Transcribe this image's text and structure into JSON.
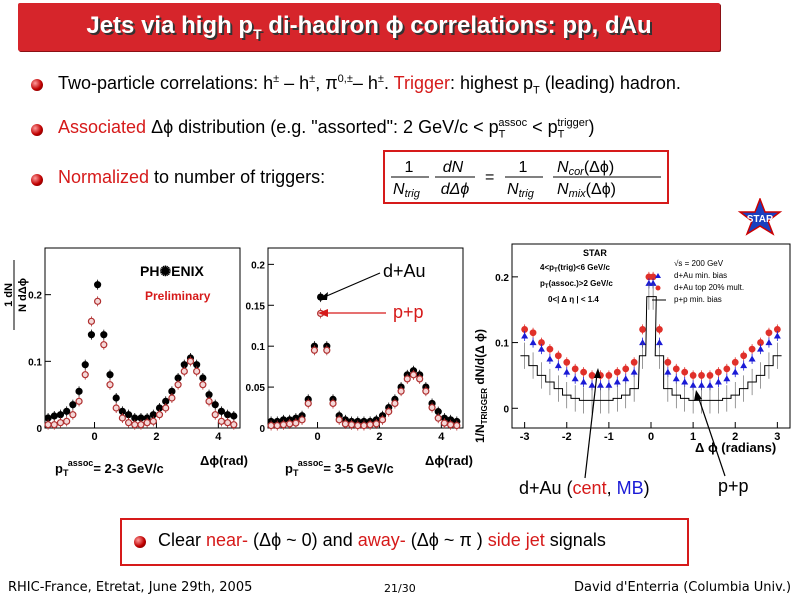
{
  "slide": {
    "title_pre": "Jets via high p",
    "title_sub": "T",
    "title_post": " di-hadron ϕ correlations: pp, dAu",
    "bullet1": {
      "text_a": "Two-particle correlations: h",
      "pm": "±",
      "text_b": " – h",
      "text_c": ", π",
      "zero_pm": "0,±",
      "text_d": "– h",
      "text_e": ".  ",
      "trigger_word": "Trigger",
      "text_f": ": highest p",
      "sub_T": "T",
      "text_g": " (leading) hadron."
    },
    "bullet2": {
      "assoc_word": "Associated",
      "text_a": " Δϕ distribution (e.g. \"assorted\": 2 GeV/c < p",
      "sub_T": "T",
      "sup_assoc": "assoc",
      "text_b": " < p",
      "sup_trigger": "trigger",
      "text_c": ")"
    },
    "bullet3": {
      "norm_word": "Normalized",
      "text_a": " to number of triggers:"
    },
    "equation": {
      "one": "1",
      "n_trig": "N",
      "trig_sub": "trig",
      "dN": "dN",
      "d_dphi": "dΔϕ",
      "equals": "=",
      "n_cor": "N",
      "cor_sub": "cor",
      "cor_arg": "(Δϕ)",
      "n_mix": "N",
      "mix_sub": "mix",
      "mix_arg": "(Δϕ)"
    },
    "star_logo": "STAR",
    "phenix": {
      "logo": "PH✺ENIX",
      "preliminary": "Preliminary",
      "ylabel_top": "1   dN",
      "ylabel_bottom": "N    dΔϕ",
      "ylabel_trig": "trig",
      "panel1_caption_pre": "p",
      "panel1_caption_sub": "T",
      "panel1_caption_sup": "assoc",
      "panel1_caption_post": "= 2-3 GeV/c",
      "panel2_caption_post": "= 3-5 GeV/c",
      "xaxis_label": "Δϕ(rad)",
      "label_dau": "d+Au",
      "label_pp": "p+p"
    },
    "star_plot": {
      "title": "STAR",
      "ann1": "4<p",
      "ann1_sub": "T",
      "ann1_post": "(trig)<6 GeV/c",
      "ann2": "p",
      "ann2_sub": "T",
      "ann2_post": "(assoc.)>2 GeV/c",
      "ann3": "0<| Δ η | < 1.4",
      "sqrts": "√s = 200 GeV",
      "leg1": "d+Au min. bias",
      "leg2": "d+Au top 20% mult.",
      "leg3": "p+p min. bias",
      "ylabel": "1/N",
      "ylabel_sub": "TRIGGER",
      "ylabel_post": " dN/d(Δ ϕ)",
      "xlabel": "Δ ϕ (radians)",
      "caption_pre": "d+Au (",
      "caption_cent": "cent",
      "caption_mid": ", ",
      "caption_mb": "MB",
      "caption_post": ")",
      "caption_pp": "p+p"
    },
    "bottom": {
      "text_a": "Clear ",
      "near_word": "near-",
      "text_b": " (Δϕ ~ 0) and ",
      "away_word": "away-",
      "text_c": " (Δϕ ~ π ) ",
      "side_jet": "side jet",
      "text_d": " signals"
    },
    "footer": {
      "left": "RHIC-France, Etretat, June 29th, 2005",
      "center": "21/30",
      "right": "David d'Enterria (Columbia Univ.)"
    },
    "colors": {
      "accent_red": "#d61a1a",
      "blue": "#1a1ad6",
      "title_bg": "#d6252b"
    }
  },
  "chart_data": [
    {
      "type": "scatter",
      "title": "",
      "xlabel": "Δϕ(rad)",
      "ylabel": "1/N_trig dN/dΔϕ",
      "xlim": [
        -1.6,
        4.7
      ],
      "ylim": [
        0,
        0.27
      ],
      "xticks": [
        0,
        2,
        4
      ],
      "yticks": [
        0,
        0.1,
        0.2
      ],
      "series": [
        {
          "name": "d+Au",
          "x": [
            -1.5,
            -1.3,
            -1.1,
            -0.9,
            -0.7,
            -0.5,
            -0.3,
            -0.1,
            0.1,
            0.3,
            0.5,
            0.7,
            0.9,
            1.1,
            1.3,
            1.5,
            1.7,
            1.9,
            2.1,
            2.3,
            2.5,
            2.7,
            2.9,
            3.1,
            3.3,
            3.5,
            3.7,
            3.9,
            4.1,
            4.3,
            4.5
          ],
          "y": [
            0.015,
            0.018,
            0.02,
            0.025,
            0.035,
            0.055,
            0.095,
            0.14,
            0.215,
            0.14,
            0.08,
            0.045,
            0.025,
            0.02,
            0.015,
            0.015,
            0.015,
            0.02,
            0.03,
            0.04,
            0.055,
            0.075,
            0.095,
            0.105,
            0.095,
            0.075,
            0.05,
            0.035,
            0.025,
            0.02,
            0.018
          ]
        },
        {
          "name": "p+p",
          "x": [
            -1.5,
            -1.3,
            -1.1,
            -0.9,
            -0.7,
            -0.5,
            -0.3,
            -0.1,
            0.1,
            0.3,
            0.5,
            0.7,
            0.9,
            1.1,
            1.3,
            1.5,
            1.7,
            1.9,
            2.1,
            2.3,
            2.5,
            2.7,
            2.9,
            3.1,
            3.3,
            3.5,
            3.7,
            3.9,
            4.1,
            4.3,
            4.5
          ],
          "y": [
            0.005,
            0.005,
            0.008,
            0.01,
            0.02,
            0.04,
            0.08,
            0.16,
            0.19,
            0.125,
            0.065,
            0.03,
            0.015,
            0.008,
            0.005,
            0.005,
            0.008,
            0.01,
            0.02,
            0.03,
            0.045,
            0.065,
            0.085,
            0.1,
            0.085,
            0.065,
            0.04,
            0.02,
            0.01,
            0.008,
            0.005
          ]
        }
      ]
    },
    {
      "type": "scatter",
      "title": "",
      "xlabel": "Δϕ(rad)",
      "ylabel": "",
      "xlim": [
        -1.6,
        4.7
      ],
      "ylim": [
        0,
        0.22
      ],
      "xticks": [
        0,
        2,
        4
      ],
      "yticks": [
        0,
        0.05,
        0.1,
        0.15,
        0.2
      ],
      "series": [
        {
          "name": "d+Au",
          "x": [
            -1.5,
            -1.3,
            -1.1,
            -0.9,
            -0.7,
            -0.5,
            -0.3,
            -0.1,
            0.1,
            0.3,
            0.5,
            0.7,
            0.9,
            1.1,
            1.3,
            1.5,
            1.7,
            1.9,
            2.1,
            2.3,
            2.5,
            2.7,
            2.9,
            3.1,
            3.3,
            3.5,
            3.7,
            3.9,
            4.1,
            4.3,
            4.5
          ],
          "y": [
            0.008,
            0.008,
            0.01,
            0.01,
            0.012,
            0.015,
            0.035,
            0.1,
            0.16,
            0.1,
            0.035,
            0.015,
            0.01,
            0.008,
            0.008,
            0.008,
            0.008,
            0.01,
            0.015,
            0.025,
            0.035,
            0.05,
            0.065,
            0.07,
            0.065,
            0.05,
            0.03,
            0.02,
            0.012,
            0.01,
            0.008
          ]
        },
        {
          "name": "p+p",
          "x": [
            -1.5,
            -1.3,
            -1.1,
            -0.9,
            -0.7,
            -0.5,
            -0.3,
            -0.1,
            0.1,
            0.3,
            0.5,
            0.7,
            0.9,
            1.1,
            1.3,
            1.5,
            1.7,
            1.9,
            2.1,
            2.3,
            2.5,
            2.7,
            2.9,
            3.1,
            3.3,
            3.5,
            3.7,
            3.9,
            4.1,
            4.3,
            4.5
          ],
          "y": [
            0.003,
            0.003,
            0.004,
            0.005,
            0.006,
            0.01,
            0.03,
            0.095,
            0.14,
            0.095,
            0.03,
            0.01,
            0.005,
            0.004,
            0.003,
            0.003,
            0.004,
            0.005,
            0.01,
            0.02,
            0.03,
            0.045,
            0.06,
            0.065,
            0.06,
            0.045,
            0.025,
            0.012,
            0.006,
            0.004,
            0.003
          ]
        }
      ]
    },
    {
      "type": "scatter",
      "title": "STAR",
      "xlabel": "Δ ϕ (radians)",
      "ylabel": "1/N_TRIGGER dN/d(Δ ϕ)",
      "xlim": [
        -3.3,
        3.3
      ],
      "ylim": [
        -0.03,
        0.25
      ],
      "xticks": [
        -3,
        -2,
        -1,
        0,
        1,
        2,
        3
      ],
      "yticks": [
        0,
        0.1,
        0.2
      ],
      "series": [
        {
          "name": "d+Au top 20% mult.",
          "x": [
            -3.0,
            -2.8,
            -2.6,
            -2.4,
            -2.2,
            -2.0,
            -1.8,
            -1.6,
            -1.4,
            -1.2,
            -1.0,
            -0.8,
            -0.6,
            -0.4,
            -0.2,
            -0.05,
            0.05,
            0.2,
            0.4,
            0.6,
            0.8,
            1.0,
            1.2,
            1.4,
            1.6,
            1.8,
            2.0,
            2.2,
            2.4,
            2.6,
            2.8,
            3.0
          ],
          "y": [
            0.12,
            0.115,
            0.1,
            0.09,
            0.08,
            0.07,
            0.06,
            0.055,
            0.05,
            0.05,
            0.05,
            0.055,
            0.06,
            0.07,
            0.12,
            0.2,
            0.2,
            0.12,
            0.07,
            0.06,
            0.055,
            0.05,
            0.05,
            0.05,
            0.055,
            0.06,
            0.07,
            0.08,
            0.09,
            0.1,
            0.115,
            0.12
          ]
        },
        {
          "name": "d+Au min. bias",
          "x": [
            -3.0,
            -2.8,
            -2.6,
            -2.4,
            -2.2,
            -2.0,
            -1.8,
            -1.6,
            -1.4,
            -1.2,
            -1.0,
            -0.8,
            -0.6,
            -0.4,
            -0.2,
            -0.05,
            0.05,
            0.2,
            0.4,
            0.6,
            0.8,
            1.0,
            1.2,
            1.4,
            1.6,
            1.8,
            2.0,
            2.2,
            2.4,
            2.6,
            2.8,
            3.0
          ],
          "y": [
            0.11,
            0.1,
            0.09,
            0.075,
            0.065,
            0.055,
            0.045,
            0.04,
            0.035,
            0.035,
            0.035,
            0.04,
            0.045,
            0.055,
            0.1,
            0.19,
            0.19,
            0.1,
            0.055,
            0.045,
            0.04,
            0.035,
            0.035,
            0.035,
            0.04,
            0.045,
            0.055,
            0.065,
            0.075,
            0.09,
            0.1,
            0.11
          ]
        },
        {
          "name": "p+p min. bias",
          "x": [
            -3.0,
            -2.8,
            -2.6,
            -2.4,
            -2.2,
            -2.0,
            -1.8,
            -1.6,
            -1.4,
            -1.2,
            -1.0,
            -0.8,
            -0.6,
            -0.4,
            -0.2,
            -0.05,
            0.05,
            0.2,
            0.4,
            0.6,
            0.8,
            1.0,
            1.2,
            1.4,
            1.6,
            1.8,
            2.0,
            2.2,
            2.4,
            2.6,
            2.8,
            3.0
          ],
          "y": [
            0.08,
            0.065,
            0.05,
            0.04,
            0.03,
            0.02,
            0.015,
            0.012,
            0.012,
            0.012,
            0.012,
            0.015,
            0.02,
            0.03,
            0.08,
            0.17,
            0.17,
            0.08,
            0.03,
            0.02,
            0.015,
            0.012,
            0.012,
            0.012,
            0.012,
            0.015,
            0.02,
            0.03,
            0.04,
            0.05,
            0.065,
            0.08
          ]
        }
      ]
    }
  ]
}
